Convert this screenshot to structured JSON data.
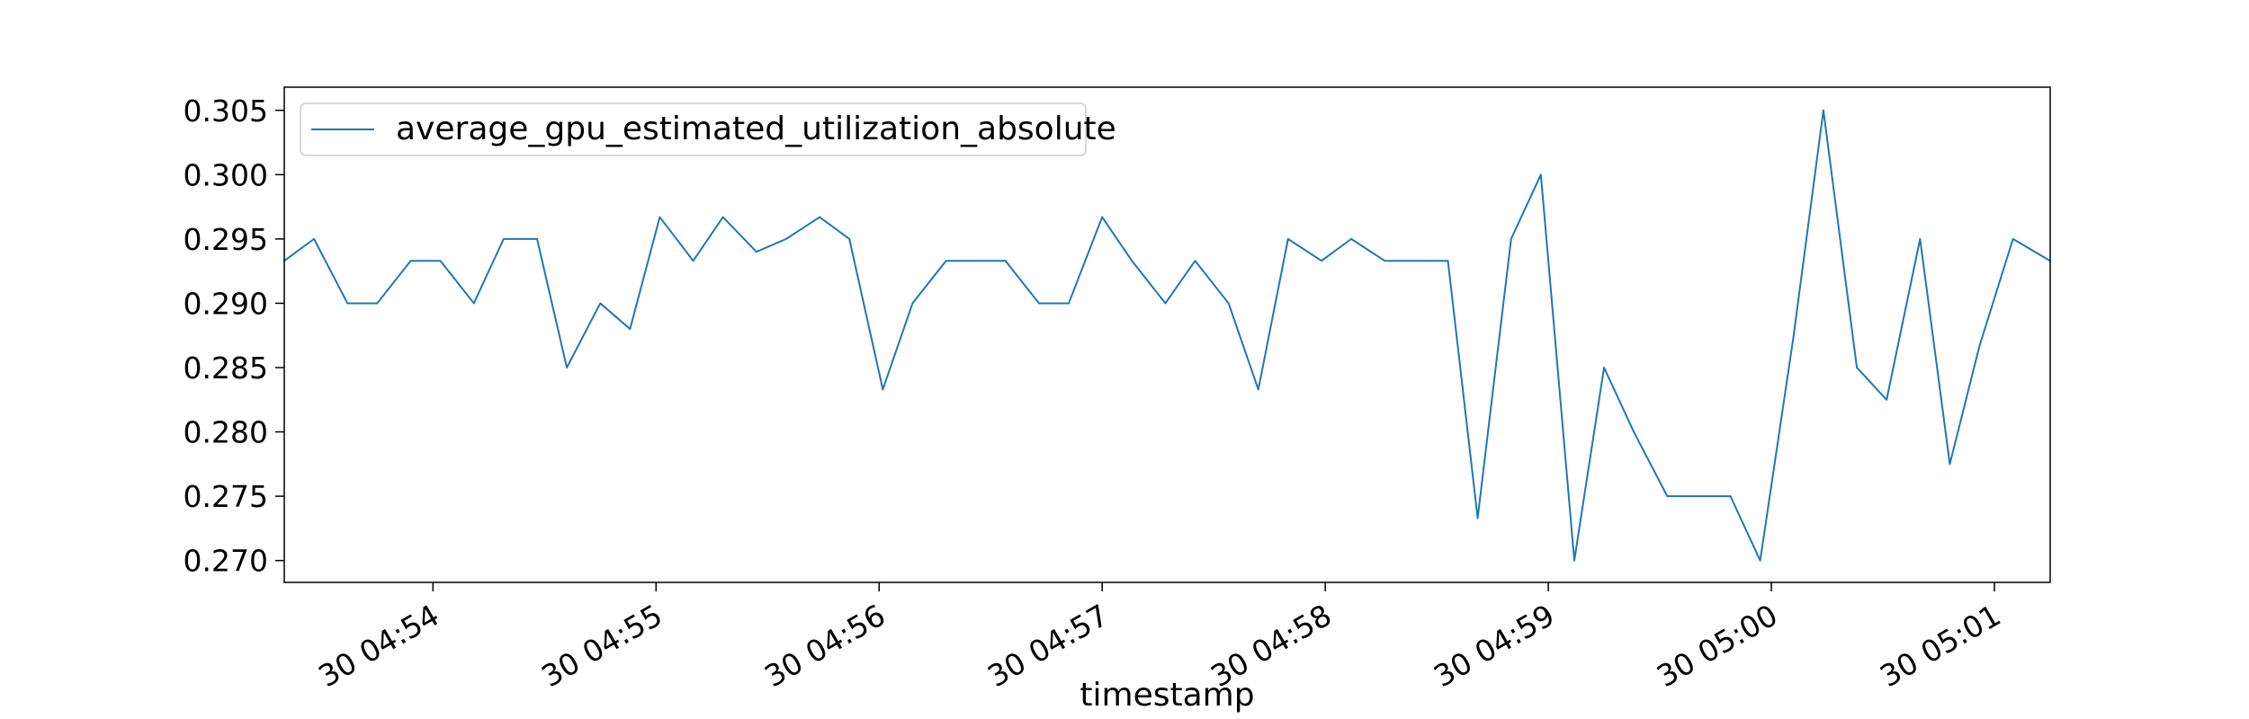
{
  "chart_data": {
    "type": "line",
    "title": "",
    "xlabel": "timestamp",
    "ylabel": "",
    "grid": false,
    "legend_position": "top-left",
    "xlim": [
      "04:53:20",
      "05:01:15"
    ],
    "ylim": [
      0.2683,
      0.3068
    ],
    "x_ticks": [
      {
        "time": "04:54:00",
        "label": "30 04:54"
      },
      {
        "time": "04:55:00",
        "label": "30 04:55"
      },
      {
        "time": "04:56:00",
        "label": "30 04:56"
      },
      {
        "time": "04:57:00",
        "label": "30 04:57"
      },
      {
        "time": "04:58:00",
        "label": "30 04:58"
      },
      {
        "time": "04:59:00",
        "label": "30 04:59"
      },
      {
        "time": "05:00:00",
        "label": "30 05:00"
      },
      {
        "time": "05:01:00",
        "label": "30 05:01"
      }
    ],
    "y_ticks": [
      {
        "value": 0.27,
        "label": "0.270"
      },
      {
        "value": 0.275,
        "label": "0.275"
      },
      {
        "value": 0.28,
        "label": "0.280"
      },
      {
        "value": 0.285,
        "label": "0.285"
      },
      {
        "value": 0.29,
        "label": "0.290"
      },
      {
        "value": 0.295,
        "label": "0.295"
      },
      {
        "value": 0.3,
        "label": "0.300"
      },
      {
        "value": 0.305,
        "label": "0.305"
      }
    ],
    "series": [
      {
        "name": "average_gpu_estimated_utilization_absolute",
        "color": "#1f77b4",
        "points": [
          [
            "04:53:20",
            0.2933
          ],
          [
            "04:53:28",
            0.295
          ],
          [
            "04:53:37",
            0.29
          ],
          [
            "04:53:45",
            0.29
          ],
          [
            "04:53:54",
            0.2933
          ],
          [
            "04:54:02",
            0.2933
          ],
          [
            "04:54:11",
            0.29
          ],
          [
            "04:54:19",
            0.295
          ],
          [
            "04:54:28",
            0.295
          ],
          [
            "04:54:36",
            0.285
          ],
          [
            "04:54:45",
            0.29
          ],
          [
            "04:54:53",
            0.288
          ],
          [
            "04:55:01",
            0.2967
          ],
          [
            "04:55:10",
            0.2933
          ],
          [
            "04:55:18",
            0.2967
          ],
          [
            "04:55:27",
            0.294
          ],
          [
            "04:55:35",
            0.295
          ],
          [
            "04:55:44",
            0.2967
          ],
          [
            "04:55:52",
            0.295
          ],
          [
            "04:56:01",
            0.2833
          ],
          [
            "04:56:09",
            0.29
          ],
          [
            "04:56:18",
            0.2933
          ],
          [
            "04:56:26",
            0.2933
          ],
          [
            "04:56:34",
            0.2933
          ],
          [
            "04:56:43",
            0.29
          ],
          [
            "04:56:51",
            0.29
          ],
          [
            "04:57:00",
            0.2967
          ],
          [
            "04:57:08",
            0.2933
          ],
          [
            "04:57:17",
            0.29
          ],
          [
            "04:57:25",
            0.2933
          ],
          [
            "04:57:34",
            0.29
          ],
          [
            "04:57:42",
            0.2833
          ],
          [
            "04:57:50",
            0.295
          ],
          [
            "04:57:59",
            0.2933
          ],
          [
            "04:58:07",
            0.295
          ],
          [
            "04:58:16",
            0.2933
          ],
          [
            "04:58:24",
            0.2933
          ],
          [
            "04:58:33",
            0.2933
          ],
          [
            "04:58:41",
            0.2733
          ],
          [
            "04:58:50",
            0.295
          ],
          [
            "04:58:58",
            0.3
          ],
          [
            "04:59:07",
            0.27
          ],
          [
            "04:59:15",
            0.285
          ],
          [
            "04:59:23",
            0.28
          ],
          [
            "04:59:32",
            0.275
          ],
          [
            "04:59:40",
            0.275
          ],
          [
            "04:59:49",
            0.275
          ],
          [
            "04:59:57",
            0.27
          ],
          [
            "05:00:06",
            0.2875
          ],
          [
            "05:00:14",
            0.305
          ],
          [
            "05:00:23",
            0.285
          ],
          [
            "05:00:31",
            0.2825
          ],
          [
            "05:00:40",
            0.295
          ],
          [
            "05:00:48",
            0.2775
          ],
          [
            "05:00:56",
            0.2867
          ],
          [
            "05:01:05",
            0.295
          ],
          [
            "05:01:15",
            0.2933
          ]
        ]
      }
    ]
  }
}
